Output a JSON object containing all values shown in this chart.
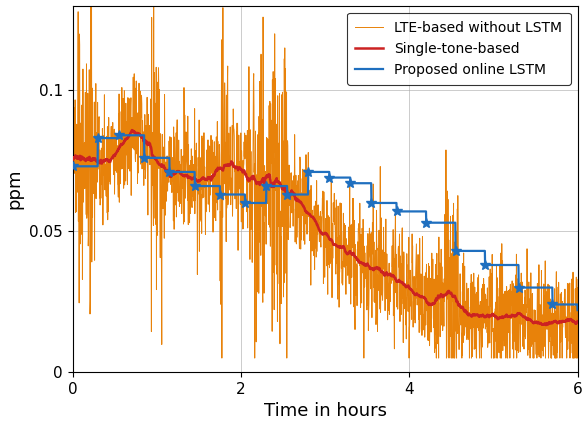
{
  "title": "",
  "xlabel": "Time in hours",
  "ylabel": "ppm",
  "xlim": [
    0,
    6
  ],
  "ylim": [
    0,
    0.13
  ],
  "yticks": [
    0,
    0.05,
    0.1
  ],
  "xticks": [
    0,
    2,
    4,
    6
  ],
  "legend": [
    "LTE-based without LSTM",
    "Proposed online LSTM",
    "Single-tone-based"
  ],
  "lte_color": "#E8820A",
  "lstm_color": "#1F6FBF",
  "single_color": "#CC2222",
  "figsize": [
    5.88,
    4.26
  ],
  "dpi": 100
}
